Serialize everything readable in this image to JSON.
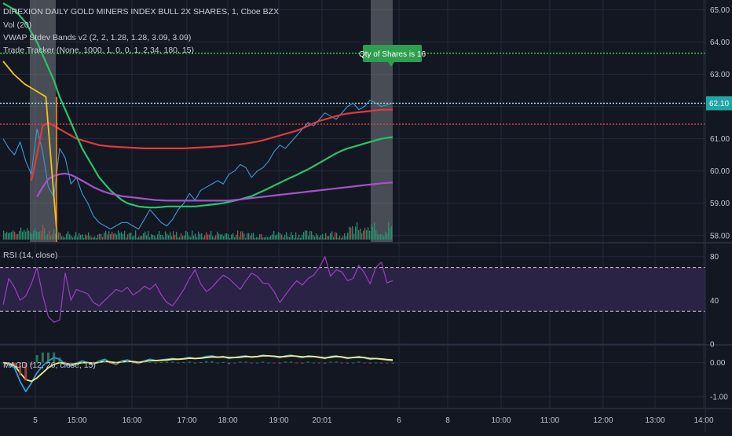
{
  "legend": {
    "symbol": "DIREXION DAILY GOLD MINERS INDEX BULL 2X SHARES, 1, Cboe BZX",
    "vol": "Vol (20)",
    "vwap": "VWAP Stdev Bands v2 (2, 2, 1.28, 1.28, 3.09, 3.09)",
    "tracker": "Trade Tracker (None, 1000, 1, 0, 0, 1, 2.34, 180, 15)",
    "rsi": "RSI (14, close)",
    "macd": "MACD (12, 26, close, 15)"
  },
  "callout": {
    "text": "Qty of Shares is 16",
    "color": "#2e9e4f"
  },
  "price_badge": {
    "text": "62.10",
    "color": "#1fa7a6"
  },
  "colors": {
    "background": "#131722",
    "grid": "#22283a",
    "price": "#3a9ad9",
    "vwap": "#e03b3b",
    "green_line": "#28c46c",
    "purple_line": "#a552c9",
    "yellow_line": "#f0c419",
    "rsi_line": "#9c3fbf",
    "rsi_band": "#2a2346",
    "macd_line": "#2f9be0",
    "signal_line": "#f4f07a",
    "target_line": "#3cc04e",
    "stop_line": "#e04545",
    "entry_line": "#9ee8f0",
    "volume": "#2a8f6e",
    "highlight": "#8a8d95"
  },
  "chart_data": [
    {
      "type": "line",
      "panel": "price",
      "ylim": [
        57.8,
        65.3
      ],
      "y_ticks": [
        "65.00",
        "64.00",
        "63.00",
        "62.00",
        "61.00",
        "60.00",
        "59.00",
        "58.00"
      ],
      "y_tick_values": [
        65,
        64,
        63,
        62,
        61,
        60,
        59,
        58
      ],
      "x_ticks": [
        "5",
        "15:00",
        "16:00",
        "17:00",
        "18:00",
        "19:00",
        "20:01",
        "6",
        "8",
        "10:00",
        "11:00",
        "12:00",
        "13:00",
        "14:00"
      ],
      "horizontal_levels": [
        {
          "name": "target",
          "value": 63.65
        },
        {
          "name": "entry",
          "value": 62.1
        },
        {
          "name": "stop",
          "value": 61.45
        }
      ],
      "series": [
        {
          "name": "",
          "kind": "price",
          "values": [
            61.0,
            60.7,
            60.5,
            60.9,
            60.3,
            59.9,
            61.3,
            60.6,
            59.5,
            59.2,
            60.7,
            60.4,
            59.6,
            59.8,
            59.3,
            59.0,
            58.6,
            58.4,
            58.3,
            58.2,
            58.3,
            58.4,
            58.4,
            58.3,
            58.2,
            58.5,
            58.8,
            58.6,
            58.4,
            58.3,
            58.5,
            58.8,
            59.0,
            59.3,
            59.1,
            59.4,
            59.5,
            59.6,
            59.7,
            59.6,
            59.9,
            60.0,
            60.2,
            60.1,
            59.8,
            60.0,
            60.1,
            60.3,
            60.6,
            60.8,
            60.7,
            60.9,
            61.1,
            61.3,
            61.5,
            61.4,
            61.6,
            61.8,
            61.7,
            61.6,
            61.8,
            62.0,
            62.1,
            61.9,
            62.0,
            62.2,
            62.1,
            62.0,
            62.05,
            62.1
          ]
        },
        {
          "name": "",
          "kind": "vwap",
          "values": [
            null,
            null,
            null,
            null,
            null,
            59.7,
            60.5,
            61.4,
            61.5,
            61.4,
            61.3,
            61.2,
            61.1,
            61.0,
            60.95,
            60.9,
            60.85,
            60.8,
            60.78,
            60.76,
            60.75,
            60.74,
            60.73,
            60.72,
            60.71,
            60.7,
            60.7,
            60.7,
            60.7,
            60.7,
            60.7,
            60.7,
            60.7,
            60.71,
            60.72,
            60.73,
            60.74,
            60.75,
            60.76,
            60.77,
            60.79,
            60.81,
            60.83,
            60.85,
            60.88,
            60.91,
            60.95,
            61.0,
            61.05,
            61.1,
            61.15,
            61.2,
            61.25,
            61.32,
            61.4,
            61.48,
            61.55,
            61.6,
            61.65,
            61.7,
            61.75,
            61.78,
            61.8,
            61.82,
            61.84,
            61.86,
            61.88,
            61.9,
            61.9,
            61.9
          ]
        },
        {
          "name": "",
          "kind": "green",
          "values": [
            65.2,
            65.1,
            65.0,
            64.8,
            64.6,
            64.3,
            64.0,
            63.6,
            63.2,
            62.8,
            62.3,
            61.9,
            61.5,
            61.1,
            60.7,
            60.4,
            60.1,
            59.8,
            59.6,
            59.4,
            59.25,
            59.1,
            59.0,
            58.95,
            58.9,
            58.88,
            58.87,
            58.87,
            58.88,
            58.9,
            58.9,
            58.9,
            58.9,
            58.9,
            58.9,
            58.92,
            58.94,
            58.96,
            58.98,
            59.0,
            59.04,
            59.08,
            59.12,
            59.17,
            59.22,
            59.3,
            59.38,
            59.46,
            59.55,
            59.63,
            59.72,
            59.8,
            59.88,
            59.97,
            60.05,
            60.15,
            60.25,
            60.35,
            60.45,
            60.55,
            60.63,
            60.7,
            60.75,
            60.8,
            60.85,
            60.9,
            60.95,
            61.0,
            61.03,
            61.05
          ]
        },
        {
          "name": "",
          "kind": "purple",
          "values": [
            null,
            null,
            null,
            null,
            null,
            null,
            59.2,
            59.5,
            59.75,
            59.85,
            59.9,
            59.92,
            59.88,
            59.8,
            59.7,
            59.6,
            59.5,
            59.42,
            59.35,
            59.3,
            59.26,
            59.22,
            59.2,
            59.18,
            59.16,
            59.14,
            59.12,
            59.1,
            59.09,
            59.08,
            59.08,
            59.08,
            59.08,
            59.08,
            59.08,
            59.08,
            59.08,
            59.08,
            59.08,
            59.08,
            59.08,
            59.1,
            59.12,
            59.14,
            59.16,
            59.18,
            59.2,
            59.22,
            59.24,
            59.26,
            59.28,
            59.3,
            59.32,
            59.34,
            59.36,
            59.38,
            59.4,
            59.42,
            59.44,
            59.46,
            59.48,
            59.5,
            59.52,
            59.54,
            59.56,
            59.58,
            59.6,
            59.62,
            59.63,
            59.64
          ]
        },
        {
          "name": "",
          "kind": "yellow",
          "values": [
            63.4,
            63.0,
            62.7,
            62.5,
            62.3,
            58.2
          ]
        }
      ]
    },
    {
      "type": "line",
      "panel": "rsi",
      "ylim": [
        0,
        92
      ],
      "y_ticks": [
        "80",
        "40",
        "0"
      ],
      "y_tick_values": [
        80,
        40,
        0
      ],
      "band": [
        30,
        70
      ],
      "series": [
        {
          "name": "",
          "values": [
            36,
            60,
            52,
            40,
            44,
            55,
            70,
            45,
            25,
            20,
            22,
            65,
            40,
            50,
            48,
            46,
            38,
            35,
            40,
            45,
            50,
            48,
            52,
            45,
            48,
            53,
            50,
            55,
            45,
            38,
            35,
            42,
            50,
            60,
            68,
            55,
            48,
            52,
            58,
            63,
            60,
            55,
            50,
            58,
            65,
            62,
            56,
            55,
            48,
            38,
            45,
            52,
            58,
            54,
            60,
            63,
            70,
            80,
            62,
            68,
            66,
            58,
            60,
            72,
            65,
            55,
            70,
            75,
            56,
            58
          ]
        }
      ]
    },
    {
      "type": "line",
      "panel": "macd",
      "ylim": [
        -1.35,
        0.5
      ],
      "y_ticks": [
        "0.00",
        "-1.00"
      ],
      "y_tick_values": [
        0,
        -1
      ],
      "series": [
        {
          "name": "",
          "kind": "macd",
          "values": [
            0.0,
            -0.05,
            -0.15,
            -0.55,
            -0.85,
            -0.6,
            -0.3,
            -0.1,
            0.05,
            0.15,
            0.1,
            -0.05,
            -0.1,
            -0.02,
            0.05,
            0.0,
            -0.05,
            0.05,
            0.1,
            0.0,
            -0.05,
            0.05,
            0.08,
            0.02,
            -0.02,
            0.05,
            0.1,
            0.06,
            0.08,
            0.1,
            0.12,
            0.1,
            0.12,
            0.15,
            0.12,
            0.14,
            0.18,
            0.2,
            0.16,
            0.18,
            0.12,
            0.15,
            0.18,
            0.2,
            0.16,
            0.18,
            0.22,
            0.2,
            0.18,
            0.15,
            0.2,
            0.22,
            0.18,
            0.15,
            0.2,
            0.18,
            0.15,
            0.12,
            0.18,
            0.2,
            0.16,
            0.12,
            0.15,
            0.18,
            0.14,
            0.1,
            0.12,
            0.1,
            0.08,
            0.06
          ]
        },
        {
          "name": "",
          "kind": "signal",
          "values": [
            0.0,
            -0.02,
            -0.08,
            -0.3,
            -0.5,
            -0.55,
            -0.45,
            -0.3,
            -0.15,
            -0.05,
            0.0,
            -0.02,
            -0.05,
            -0.03,
            0.0,
            0.0,
            -0.02,
            0.01,
            0.04,
            0.02,
            0.0,
            0.02,
            0.04,
            0.03,
            0.01,
            0.03,
            0.06,
            0.06,
            0.07,
            0.08,
            0.1,
            0.1,
            0.11,
            0.13,
            0.12,
            0.13,
            0.15,
            0.17,
            0.16,
            0.17,
            0.15,
            0.15,
            0.16,
            0.18,
            0.17,
            0.18,
            0.2,
            0.2,
            0.19,
            0.17,
            0.18,
            0.2,
            0.19,
            0.17,
            0.18,
            0.18,
            0.16,
            0.14,
            0.16,
            0.18,
            0.17,
            0.14,
            0.15,
            0.16,
            0.15,
            0.12,
            0.12,
            0.11,
            0.09,
            0.08
          ]
        }
      ]
    }
  ]
}
